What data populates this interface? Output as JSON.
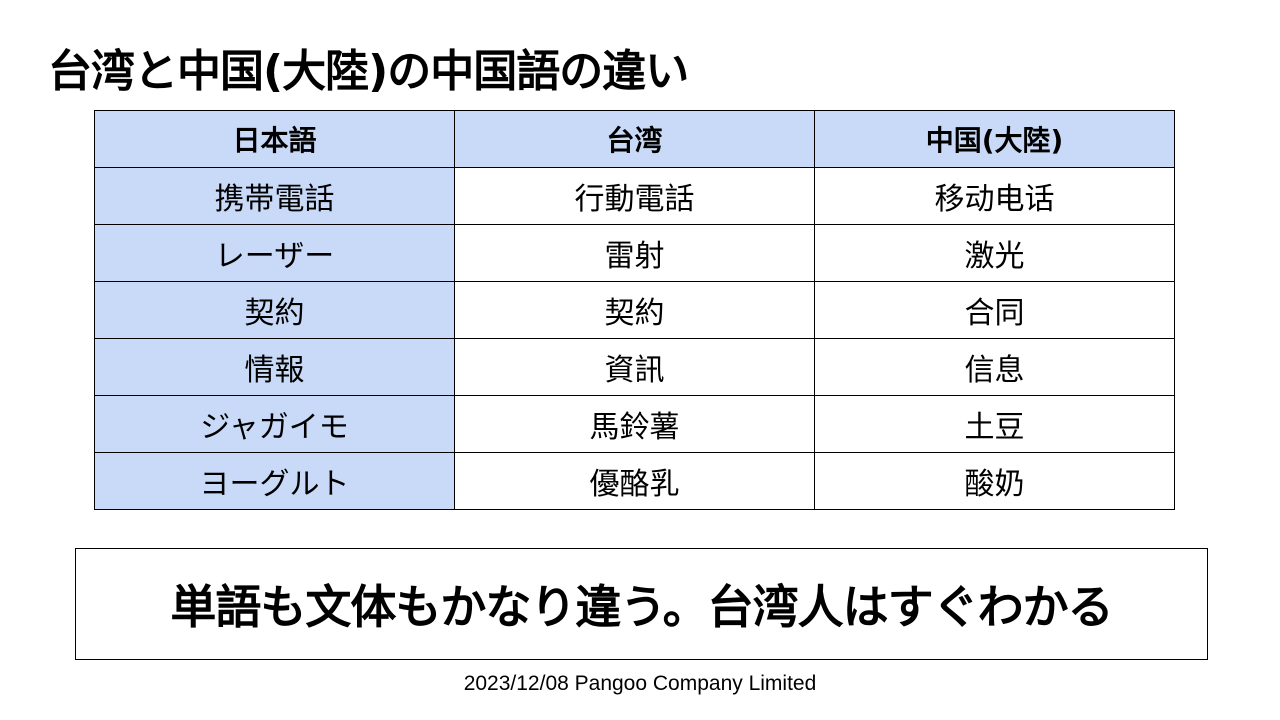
{
  "title": "台湾と中国(大陸)の中国語の違い",
  "table": {
    "headers": [
      "日本語",
      "台湾",
      "中国(大陸)"
    ],
    "rows": [
      [
        "携帯電話",
        "行動電話",
        "移动电话"
      ],
      [
        "レーザー",
        "雷射",
        "激光"
      ],
      [
        "契約",
        "契約",
        "合同"
      ],
      [
        "情報",
        "資訊",
        "信息"
      ],
      [
        "ジャガイモ",
        "馬鈴薯",
        "土豆"
      ],
      [
        "ヨーグルト",
        "優酪乳",
        "酸奶"
      ]
    ]
  },
  "summary": "単語も文体もかなり違う。台湾人はすぐわかる",
  "footer": "2023/12/08 Pangoo Company Limited",
  "colors": {
    "header_bg": "#c9daf8",
    "first_column_bg": "#c9daf8",
    "border": "#000000"
  }
}
